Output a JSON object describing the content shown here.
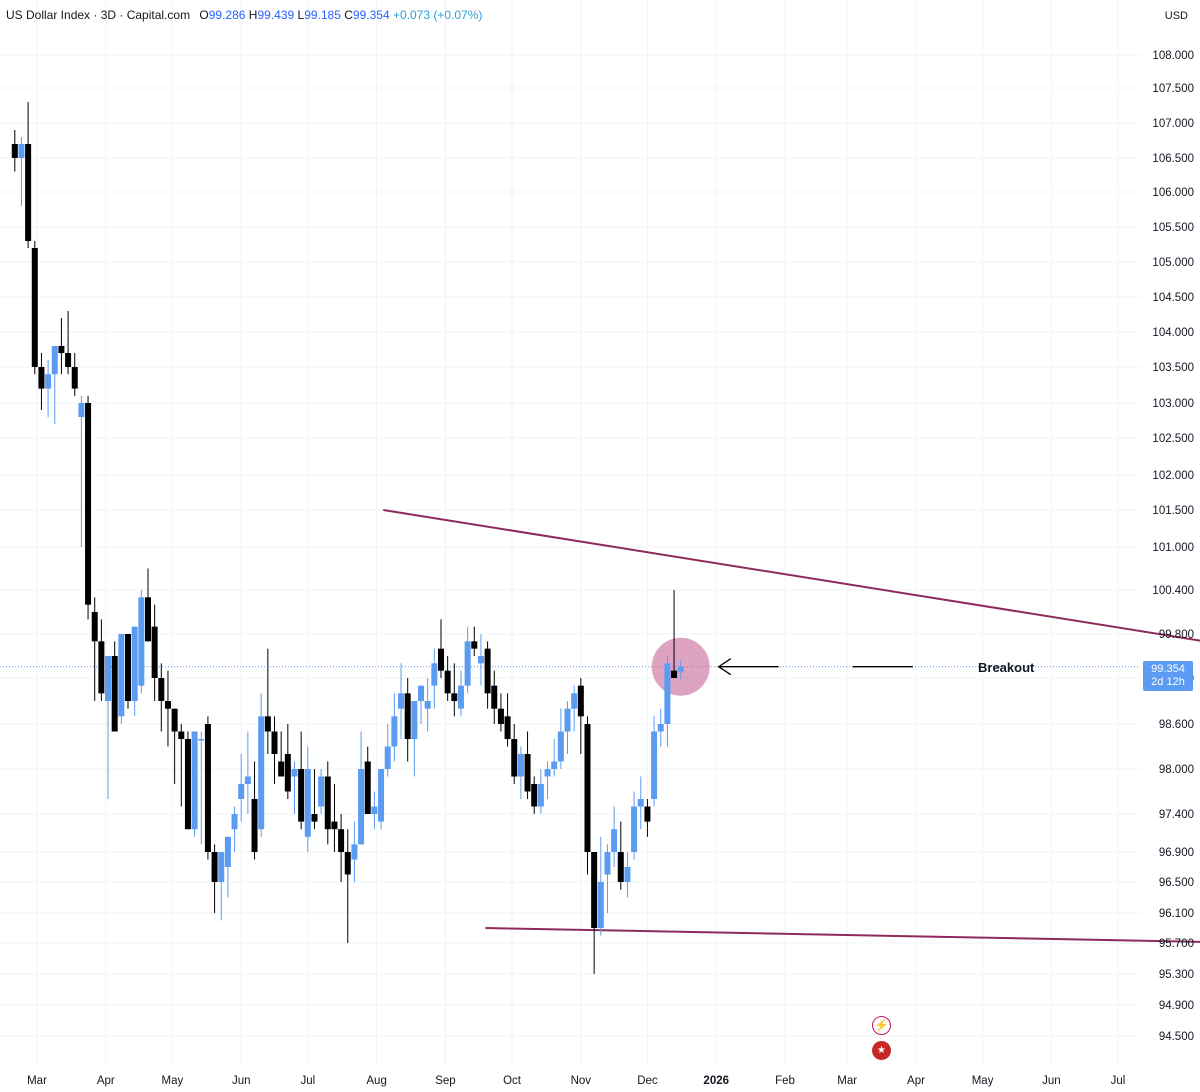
{
  "header": {
    "symbol": "US Dollar Index · 3D · Capital.com",
    "o_label": "O",
    "o_value": "99.286",
    "h_label": "H",
    "h_value": "99.439",
    "l_label": "L",
    "l_value": "99.185",
    "c_label": "C",
    "c_value": "99.354",
    "change": "+0.073 (+0.07%)"
  },
  "currency": "USD",
  "price_tag": {
    "price": "99.354",
    "countdown": "2d 12h"
  },
  "annotation": {
    "label": "Breakout"
  },
  "colors": {
    "up": "#5b9cf2",
    "down": "#000000",
    "trendline": "#8e2a5c",
    "highlight": "#c2578e",
    "price_line": "#5b9cf2"
  },
  "icons": [
    "lightning-icon",
    "us-flag-icon"
  ],
  "chart_data": {
    "type": "candlestick",
    "title": "US Dollar Index · 3D · Capital.com",
    "ylim": [
      94.2,
      108.7
    ],
    "y_ticks": [
      "108.000",
      "107.500",
      "107.000",
      "106.500",
      "106.000",
      "105.500",
      "105.000",
      "104.500",
      "104.000",
      "103.500",
      "103.000",
      "102.500",
      "102.000",
      "101.500",
      "101.000",
      "100.400",
      "99.800",
      "99.200",
      "98.600",
      "98.000",
      "97.400",
      "96.900",
      "96.500",
      "96.100",
      "95.700",
      "95.300",
      "94.900",
      "94.500"
    ],
    "x_ticks": [
      "Mar",
      "Apr",
      "May",
      "Jun",
      "Jul",
      "Aug",
      "Sep",
      "Oct",
      "Nov",
      "Dec",
      "2026",
      "Feb",
      "Mar",
      "Apr",
      "May",
      "Jun",
      "Jul"
    ],
    "x_tick_days": [
      0,
      31,
      61,
      92,
      122,
      153,
      184,
      214,
      245,
      275,
      306,
      337,
      365,
      396,
      426,
      457,
      487
    ],
    "grid": true,
    "candles_ohlc": [
      [
        106.7,
        106.9,
        106.3,
        106.5
      ],
      [
        106.5,
        106.8,
        105.8,
        106.7
      ],
      [
        106.7,
        107.3,
        105.2,
        105.3
      ],
      [
        105.2,
        105.3,
        103.4,
        103.5
      ],
      [
        103.5,
        103.7,
        102.9,
        103.2
      ],
      [
        103.2,
        103.6,
        102.8,
        103.4
      ],
      [
        103.4,
        103.7,
        102.7,
        103.8
      ],
      [
        103.8,
        104.2,
        103.4,
        103.7
      ],
      [
        103.7,
        104.3,
        103.4,
        103.5
      ],
      [
        103.5,
        103.7,
        103.1,
        103.2
      ],
      [
        102.8,
        103.1,
        101.0,
        103.0
      ],
      [
        103.0,
        103.1,
        100.0,
        100.2
      ],
      [
        100.1,
        100.3,
        98.9,
        99.7
      ],
      [
        99.7,
        100.0,
        98.9,
        99.0
      ],
      [
        98.9,
        99.4,
        97.6,
        99.5
      ],
      [
        99.5,
        99.7,
        98.5,
        98.5
      ],
      [
        98.7,
        99.8,
        98.6,
        99.8
      ],
      [
        99.8,
        99.8,
        98.8,
        98.9
      ],
      [
        98.9,
        99.9,
        98.7,
        99.9
      ],
      [
        99.1,
        100.4,
        99.0,
        100.3
      ],
      [
        100.3,
        100.7,
        99.7,
        99.7
      ],
      [
        99.9,
        100.2,
        98.9,
        99.2
      ],
      [
        99.2,
        99.4,
        98.5,
        98.9
      ],
      [
        98.9,
        99.3,
        98.3,
        98.8
      ],
      [
        98.8,
        98.8,
        97.8,
        98.5
      ],
      [
        98.5,
        98.6,
        97.5,
        98.4
      ],
      [
        98.4,
        98.5,
        97.2,
        97.2
      ],
      [
        97.2,
        98.5,
        97.1,
        98.5
      ],
      [
        98.4,
        98.5,
        97.0,
        98.4
      ],
      [
        98.6,
        98.7,
        96.8,
        96.9
      ],
      [
        96.9,
        97.0,
        96.1,
        96.5
      ],
      [
        96.5,
        96.9,
        96.0,
        96.9
      ],
      [
        96.7,
        97.1,
        96.3,
        97.1
      ],
      [
        97.2,
        97.5,
        96.9,
        97.4
      ],
      [
        97.6,
        98.2,
        97.3,
        97.8
      ],
      [
        97.8,
        98.5,
        97.4,
        97.9
      ],
      [
        97.6,
        98.1,
        96.8,
        96.9
      ],
      [
        97.2,
        99.0,
        97.1,
        98.7
      ],
      [
        98.7,
        99.6,
        98.2,
        98.5
      ],
      [
        98.5,
        98.7,
        97.8,
        98.2
      ],
      [
        98.1,
        98.5,
        97.9,
        97.9
      ],
      [
        98.2,
        98.6,
        97.6,
        97.7
      ],
      [
        97.9,
        98.1,
        97.4,
        98.0
      ],
      [
        98.0,
        98.5,
        97.2,
        97.3
      ],
      [
        97.1,
        98.3,
        96.9,
        98.0
      ],
      [
        97.4,
        98.0,
        97.2,
        97.3
      ],
      [
        97.5,
        98.0,
        97.4,
        97.9
      ],
      [
        97.9,
        98.1,
        97.0,
        97.2
      ],
      [
        97.3,
        97.8,
        96.9,
        97.2
      ],
      [
        97.2,
        97.4,
        96.5,
        96.9
      ],
      [
        96.9,
        97.2,
        95.7,
        96.6
      ],
      [
        96.8,
        97.3,
        96.5,
        97.0
      ],
      [
        97.0,
        98.5,
        97.0,
        98.0
      ],
      [
        98.1,
        98.3,
        97.6,
        97.4
      ],
      [
        97.4,
        97.7,
        97.2,
        97.5
      ],
      [
        97.3,
        98.0,
        97.2,
        98.0
      ],
      [
        98.0,
        98.6,
        97.9,
        98.3
      ],
      [
        98.3,
        99.0,
        98.1,
        98.7
      ],
      [
        98.8,
        99.4,
        98.4,
        99.0
      ],
      [
        99.0,
        99.2,
        98.1,
        98.4
      ],
      [
        98.4,
        98.9,
        97.9,
        98.9
      ],
      [
        98.9,
        99.1,
        98.6,
        99.1
      ],
      [
        98.8,
        99.2,
        98.5,
        98.9
      ],
      [
        99.1,
        99.6,
        98.8,
        99.4
      ],
      [
        99.6,
        100.0,
        99.2,
        99.3
      ],
      [
        99.3,
        99.5,
        98.9,
        99.0
      ],
      [
        99.0,
        99.4,
        98.7,
        98.9
      ],
      [
        98.8,
        99.3,
        98.7,
        99.1
      ],
      [
        99.1,
        99.9,
        99.0,
        99.7
      ],
      [
        99.7,
        99.9,
        99.5,
        99.6
      ],
      [
        99.4,
        99.8,
        99.1,
        99.5
      ],
      [
        99.6,
        99.7,
        98.8,
        99.0
      ],
      [
        99.1,
        99.3,
        98.6,
        98.8
      ],
      [
        98.8,
        99.0,
        98.5,
        98.6
      ],
      [
        98.7,
        99.0,
        98.3,
        98.4
      ],
      [
        98.4,
        98.6,
        97.8,
        97.9
      ],
      [
        97.9,
        98.3,
        97.6,
        98.2
      ],
      [
        98.2,
        98.5,
        97.6,
        97.7
      ],
      [
        97.8,
        97.9,
        97.4,
        97.5
      ],
      [
        97.5,
        98.0,
        97.4,
        97.8
      ],
      [
        97.9,
        98.1,
        97.6,
        98.0
      ],
      [
        98.0,
        98.4,
        97.9,
        98.1
      ],
      [
        98.1,
        98.8,
        98.0,
        98.5
      ],
      [
        98.5,
        98.9,
        98.2,
        98.8
      ],
      [
        98.8,
        99.1,
        98.5,
        99.0
      ],
      [
        99.1,
        99.2,
        98.2,
        98.7
      ],
      [
        98.6,
        98.7,
        96.6,
        96.9
      ],
      [
        96.9,
        96.9,
        95.3,
        95.9
      ],
      [
        95.9,
        97.1,
        95.8,
        96.5
      ],
      [
        96.6,
        97.0,
        96.1,
        96.9
      ],
      [
        96.9,
        97.5,
        96.7,
        97.2
      ],
      [
        96.9,
        97.3,
        96.4,
        96.5
      ],
      [
        96.5,
        96.9,
        96.3,
        96.7
      ],
      [
        96.9,
        97.7,
        96.8,
        97.5
      ],
      [
        97.5,
        97.9,
        97.2,
        97.6
      ],
      [
        97.5,
        97.6,
        97.1,
        97.3
      ],
      [
        97.6,
        98.7,
        97.5,
        98.5
      ],
      [
        98.5,
        98.8,
        98.3,
        98.6
      ],
      [
        98.6,
        99.5,
        98.3,
        99.4
      ],
      [
        99.3,
        100.4,
        99.2,
        99.2
      ],
      [
        99.286,
        99.439,
        99.185,
        99.354
      ]
    ],
    "trendlines": [
      {
        "name": "upper",
        "from": [
          156,
          101.5
        ],
        "to": [
          651,
          99.1
        ]
      },
      {
        "name": "lower",
        "from": [
          202,
          95.9
        ],
        "to": [
          731,
          95.6
        ]
      }
    ],
    "annotations": [
      "Breakout"
    ]
  }
}
